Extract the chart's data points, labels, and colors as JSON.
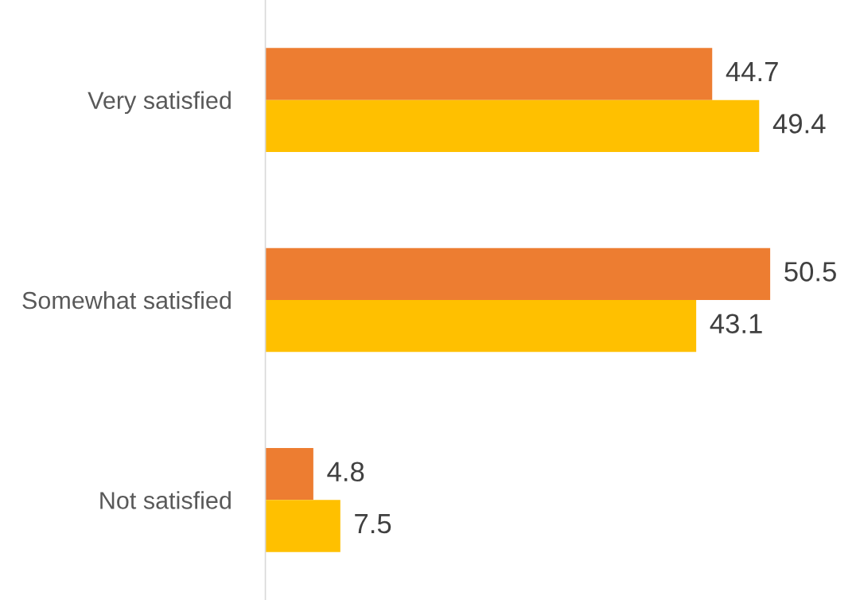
{
  "chart_data": {
    "type": "bar",
    "orientation": "horizontal",
    "categories": [
      "Very satisfied",
      "Somewhat satisfied",
      "Not satisfied"
    ],
    "series": [
      {
        "color": "#ed7d31",
        "values": [
          44.7,
          50.5,
          4.8
        ]
      },
      {
        "color": "#ffc000",
        "values": [
          49.4,
          43.1,
          7.5
        ]
      }
    ],
    "data_labels": true,
    "grid": false,
    "legend": false
  }
}
